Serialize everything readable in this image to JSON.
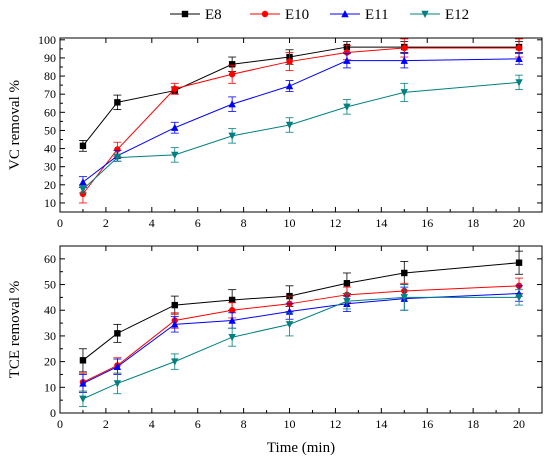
{
  "legend": [
    {
      "name": "E8",
      "color": "#000000",
      "marker": "square"
    },
    {
      "name": "E10",
      "color": "#ff0000",
      "marker": "circle"
    },
    {
      "name": "E11",
      "color": "#0000ff",
      "marker": "triangle-up"
    },
    {
      "name": "E12",
      "color": "#008080",
      "marker": "triangle-down"
    }
  ],
  "chart_data": [
    {
      "type": "line",
      "ylabel": "VC removal %",
      "xlabel": "",
      "xlim": [
        0,
        21
      ],
      "ylim": [
        5,
        101
      ],
      "xticks": [
        0,
        2,
        4,
        6,
        8,
        10,
        12,
        14,
        16,
        18,
        20
      ],
      "yticks": [
        10,
        20,
        30,
        40,
        50,
        60,
        70,
        80,
        90,
        100
      ],
      "x": [
        1,
        2.5,
        5,
        7.5,
        10,
        12.5,
        15,
        20
      ],
      "series": [
        {
          "name": "E8",
          "values": [
            41.5,
            65.5,
            72.0,
            86.5,
            90.5,
            96.0,
            96.0,
            96.0
          ],
          "errors": [
            3,
            4,
            2,
            4,
            4,
            3,
            3,
            3
          ]
        },
        {
          "name": "E10",
          "values": [
            15.0,
            39.5,
            73.0,
            81.0,
            88.0,
            93.0,
            95.5,
            95.5
          ],
          "errors": [
            5,
            4,
            3,
            5,
            5,
            4,
            5,
            5
          ]
        },
        {
          "name": "E11",
          "values": [
            21.5,
            36.0,
            51.5,
            64.5,
            74.5,
            88.5,
            88.5,
            89.5
          ],
          "errors": [
            3,
            3,
            3,
            4,
            3,
            4,
            4,
            3
          ]
        },
        {
          "name": "E12",
          "values": [
            17.5,
            35.0,
            36.5,
            47.0,
            53.0,
            63.0,
            71.0,
            76.5
          ],
          "errors": [
            2,
            2,
            4,
            4,
            4,
            4,
            5,
            4
          ]
        }
      ]
    },
    {
      "type": "line",
      "ylabel": "TCE removal %",
      "xlabel": "Time (min)",
      "xlim": [
        0,
        21
      ],
      "ylim": [
        0,
        65
      ],
      "xticks": [
        0,
        2,
        4,
        6,
        8,
        10,
        12,
        14,
        16,
        18,
        20
      ],
      "yticks": [
        0,
        10,
        20,
        30,
        40,
        50,
        60
      ],
      "x": [
        1,
        2.5,
        5,
        7.5,
        10,
        12.5,
        15,
        20
      ],
      "series": [
        {
          "name": "E8",
          "values": [
            20.5,
            31.0,
            42.0,
            44.0,
            45.5,
            50.5,
            54.5,
            58.5
          ],
          "errors": [
            4.5,
            3.5,
            3.5,
            4,
            4,
            4,
            4.5,
            4.5
          ]
        },
        {
          "name": "E10",
          "values": [
            12.0,
            18.5,
            36.0,
            40.0,
            42.5,
            46.0,
            47.5,
            49.5
          ],
          "errors": [
            3.5,
            3,
            3,
            3,
            3,
            3,
            3,
            3
          ]
        },
        {
          "name": "E11",
          "values": [
            11.5,
            18.0,
            34.5,
            36.0,
            39.5,
            42.5,
            44.5,
            46.5
          ],
          "errors": [
            3.5,
            3,
            3,
            3,
            3,
            3,
            4.5,
            3
          ]
        },
        {
          "name": "E12",
          "values": [
            5.5,
            11.5,
            20.0,
            29.5,
            34.5,
            43.5,
            45.0,
            45.0
          ],
          "errors": [
            3,
            4,
            3,
            3.5,
            4.5,
            3,
            5,
            3
          ]
        }
      ]
    }
  ]
}
